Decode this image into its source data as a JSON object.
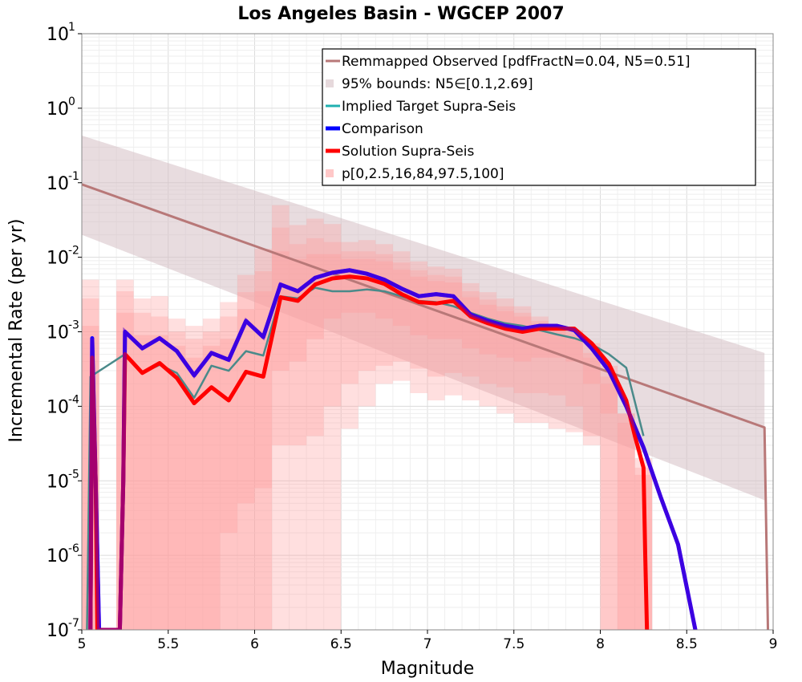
{
  "chart_data": {
    "type": "line",
    "title": "Los Angeles Basin - WGCEP 2007",
    "xlabel": "Magnitude",
    "ylabel": "Incremental Rate (per yr)",
    "xlim": [
      5,
      9
    ],
    "ylim": [
      1e-07,
      10
    ],
    "yscale": "log",
    "grid": true,
    "legend_position": "top-right",
    "x_ticks": [
      "5",
      "5.5",
      "6",
      "6.5",
      "7",
      "7.5",
      "8",
      "8.5",
      "9"
    ],
    "y_ticks": [
      {
        "base": "10",
        "exp": "1"
      },
      {
        "base": "10",
        "exp": "0"
      },
      {
        "base": "10",
        "exp": "-1"
      },
      {
        "base": "10",
        "exp": "-2"
      },
      {
        "base": "10",
        "exp": "-3"
      },
      {
        "base": "10",
        "exp": "-4"
      },
      {
        "base": "10",
        "exp": "-5"
      },
      {
        "base": "10",
        "exp": "-6"
      },
      {
        "base": "10",
        "exp": "-7"
      }
    ],
    "legend": [
      {
        "label": "Remmapped Observed [pdfFractN=0.04, N5=0.51]",
        "color": "#b87878",
        "kind": "line"
      },
      {
        "label": "95% bounds: N5∈[0.1,2.69]",
        "color": "#e6d9dc",
        "kind": "box"
      },
      {
        "label": "Implied Target Supra-Seis",
        "color": "#20b0b0",
        "kind": "line"
      },
      {
        "label": "Comparison",
        "color": "#0000ff",
        "kind": "thick"
      },
      {
        "label": "Solution Supra-Seis",
        "color": "#ff0000",
        "kind": "thick"
      },
      {
        "label": "p[0,2.5,16,84,97.5,100]",
        "color": "#ffc8c8",
        "kind": "box"
      }
    ],
    "series": [
      {
        "name": "Remmapped Observed [pdfFractN=0.04, N5=0.51]",
        "color": "#b87878",
        "x": [
          5.0,
          8.95,
          8.97
        ],
        "y": [
          0.095,
          5.2e-05,
          1e-07
        ]
      },
      {
        "name": "95% bounds: N5∈[0.1,2.69]",
        "color": "#e6d9dc",
        "x": [
          5.0,
          8.95
        ],
        "y_upper": [
          0.43,
          0.00052
        ],
        "y_lower": [
          0.02,
          5.5e-06
        ]
      },
      {
        "name": "Implied Target Supra-Seis",
        "color": "#4a8a8a",
        "x": [
          5.03,
          5.05,
          5.25,
          5.35,
          5.45,
          5.55,
          5.65,
          5.75,
          5.85,
          5.95,
          6.05,
          6.15,
          6.25,
          6.35,
          6.45,
          6.55,
          6.65,
          6.75,
          6.85,
          6.95,
          7.05,
          7.15,
          7.25,
          7.35,
          7.45,
          7.55,
          7.65,
          7.75,
          7.85,
          7.95,
          8.05,
          8.15,
          8.25
        ],
        "y": [
          1e-07,
          0.00025,
          0.0005,
          0.00028,
          0.00036,
          0.00028,
          0.00013,
          0.00035,
          0.0003,
          0.00055,
          0.00048,
          0.003,
          0.0028,
          0.0039,
          0.0035,
          0.0035,
          0.0037,
          0.0035,
          0.003,
          0.0026,
          0.0025,
          0.0022,
          0.0018,
          0.0015,
          0.0013,
          0.0012,
          0.00105,
          0.00092,
          0.00082,
          0.00068,
          0.0005,
          0.00033,
          4e-05
        ]
      },
      {
        "name": "Comparison",
        "color": "#0000ff",
        "x": [
          5.05,
          5.06,
          5.08,
          5.1,
          5.22,
          5.24,
          5.25,
          5.35,
          5.45,
          5.55,
          5.65,
          5.75,
          5.85,
          5.95,
          6.05,
          6.15,
          6.25,
          6.35,
          6.45,
          6.55,
          6.65,
          6.75,
          6.85,
          6.95,
          7.05,
          7.15,
          7.25,
          7.35,
          7.45,
          7.55,
          7.65,
          7.75,
          7.85,
          7.95,
          8.05,
          8.15,
          8.25,
          8.35,
          8.45,
          8.55
        ],
        "y": [
          1e-07,
          0.00082,
          1e-05,
          1e-07,
          1e-07,
          1e-05,
          0.001,
          0.0006,
          0.00082,
          0.00055,
          0.00026,
          0.00052,
          0.00042,
          0.0014,
          0.00085,
          0.0043,
          0.0035,
          0.0053,
          0.0062,
          0.0067,
          0.006,
          0.005,
          0.0038,
          0.003,
          0.0032,
          0.003,
          0.0017,
          0.0014,
          0.0012,
          0.0011,
          0.0012,
          0.0012,
          0.00105,
          0.0006,
          0.0003,
          0.0001,
          2.8e-05,
          6e-06,
          1.4e-06,
          1e-07
        ]
      },
      {
        "name": "Solution Supra-Seis",
        "color": "#ff0000",
        "x": [
          5.05,
          5.06,
          5.08,
          5.09,
          5.22,
          5.24,
          5.25,
          5.35,
          5.45,
          5.55,
          5.65,
          5.75,
          5.85,
          5.95,
          6.05,
          6.15,
          6.25,
          6.35,
          6.45,
          6.55,
          6.65,
          6.75,
          6.85,
          6.95,
          7.05,
          7.15,
          7.25,
          7.35,
          7.45,
          7.55,
          7.65,
          7.75,
          7.85,
          7.95,
          8.05,
          8.15,
          8.2,
          8.25,
          8.26,
          8.27
        ],
        "y": [
          1e-07,
          0.00045,
          1e-05,
          1e-07,
          1e-07,
          1e-05,
          0.0005,
          0.00028,
          0.00038,
          0.00024,
          0.00011,
          0.00018,
          0.00012,
          0.00029,
          0.00025,
          0.0029,
          0.0026,
          0.0043,
          0.0052,
          0.0055,
          0.0052,
          0.0044,
          0.0032,
          0.0025,
          0.0024,
          0.0026,
          0.0016,
          0.0013,
          0.0011,
          0.001,
          0.0011,
          0.0011,
          0.0011,
          0.0007,
          0.00037,
          0.00012,
          4e-05,
          1.5e-05,
          1e-06,
          1e-07
        ]
      },
      {
        "name": "p[0,2.5,16,84,97.5,100]",
        "color": "#ff9a9a",
        "x": [
          5.05,
          5.15,
          5.25,
          5.35,
          5.45,
          5.55,
          5.65,
          5.75,
          5.85,
          5.95,
          6.05,
          6.15,
          6.25,
          6.35,
          6.45,
          6.55,
          6.65,
          6.75,
          6.85,
          6.95,
          7.05,
          7.15,
          7.25,
          7.35,
          7.45,
          7.55,
          7.65,
          7.75,
          7.85,
          7.95,
          8.05,
          8.15,
          8.25
        ],
        "bands": [
          {
            "opacity": 0.32,
            "upper": [
              0.005,
              1e-07,
              0.005,
              0.0028,
              0.003,
              0.0015,
              0.0012,
              0.0015,
              0.0025,
              0.0058,
              0.013,
              0.05,
              0.027,
              0.033,
              0.028,
              0.016,
              0.017,
              0.015,
              0.012,
              0.0088,
              0.0075,
              0.007,
              0.0045,
              0.0034,
              0.0028,
              0.0022,
              0.0016,
              0.0012,
              0.001,
              0.00052,
              0.00025,
              8e-05,
              2e-05
            ],
            "lower": [
              1e-07,
              1e-07,
              1e-07,
              1e-07,
              1e-07,
              1e-07,
              1e-07,
              1e-07,
              1e-07,
              1e-07,
              1e-07,
              1e-07,
              1e-07,
              1e-07,
              1e-07,
              5e-05,
              0.0001,
              0.0002,
              0.00022,
              0.00015,
              0.00012,
              0.00014,
              0.00012,
              0.0001,
              8e-05,
              6e-05,
              6e-05,
              5e-05,
              4.5e-05,
              3e-05,
              1e-07,
              1e-07,
              1e-07
            ]
          },
          {
            "opacity": 0.32,
            "upper": [
              0.0028,
              1e-07,
              0.0035,
              0.0018,
              0.0016,
              0.001,
              0.0008,
              0.001,
              0.0016,
              0.0034,
              0.0065,
              0.025,
              0.015,
              0.018,
              0.016,
              0.012,
              0.012,
              0.011,
              0.0085,
              0.0067,
              0.0058,
              0.0055,
              0.0035,
              0.0027,
              0.0022,
              0.0018,
              0.0014,
              0.0011,
              0.0009,
              0.00045,
              0.0002,
              6e-05,
              1.5e-05
            ],
            "lower": [
              1e-07,
              1e-07,
              1e-07,
              1e-07,
              1e-07,
              1e-07,
              1e-07,
              1e-07,
              2e-06,
              5e-06,
              8e-06,
              3e-05,
              3e-05,
              4e-05,
              0.0001,
              0.0002,
              0.0003,
              0.00035,
              0.0004,
              0.00032,
              0.00025,
              0.00028,
              0.00025,
              0.0002,
              0.00018,
              0.00015,
              0.00015,
              0.00014,
              0.0001,
              4e-05,
              1e-07,
              1e-07,
              1e-07
            ]
          },
          {
            "opacity": 0.36,
            "upper": [
              0.0012,
              1e-07,
              0.0018,
              0.0009,
              0.0009,
              0.00065,
              0.00045,
              0.00065,
              0.0008,
              0.002,
              0.0035,
              0.012,
              0.0095,
              0.011,
              0.011,
              0.0095,
              0.0095,
              0.0088,
              0.0068,
              0.0055,
              0.0048,
              0.0046,
              0.0029,
              0.0023,
              0.0019,
              0.0016,
              0.0013,
              0.0012,
              0.00105,
              0.0007,
              0.00035,
              8e-05,
              1.2e-05
            ],
            "lower": [
              1e-07,
              1e-07,
              1e-07,
              1e-07,
              1e-07,
              1e-07,
              1e-07,
              1e-07,
              1e-07,
              1e-07,
              1e-07,
              0.0003,
              0.0004,
              0.0008,
              0.0015,
              0.0018,
              0.0018,
              0.0015,
              0.0012,
              0.0009,
              0.0008,
              0.0008,
              0.0006,
              0.0005,
              0.00045,
              0.0004,
              0.00045,
              0.00045,
              0.0004,
              0.0002,
              8e-05,
              1e-07,
              1e-07
            ]
          }
        ]
      }
    ]
  }
}
